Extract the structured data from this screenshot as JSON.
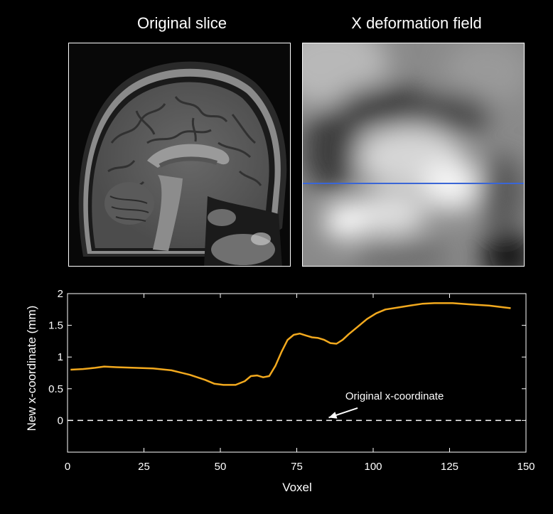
{
  "panels": {
    "left_title": "Original slice",
    "right_title": "X deformation field"
  },
  "colors": {
    "curve": "#f2a91e",
    "baseline": "#ffffff",
    "profile_line": "#3a66d6",
    "axis": "#ffffff",
    "background": "#000000"
  },
  "chart_data": {
    "type": "line",
    "title": "",
    "xlabel": "Voxel",
    "ylabel": "New x-coordinate (mm)",
    "xlim": [
      0,
      150
    ],
    "ylim": [
      -0.5,
      2
    ],
    "xticks": [
      0,
      25,
      50,
      75,
      100,
      125,
      150
    ],
    "yticks": [
      0,
      0.5,
      1,
      1.5,
      2
    ],
    "xtick_labels": [
      "0",
      "25",
      "50",
      "75",
      "100",
      "125",
      "150"
    ],
    "ytick_labels": [
      "0",
      "0.5",
      "1",
      "1.5",
      "2"
    ],
    "grid": false,
    "series": [
      {
        "x": [
          1,
          5,
          9,
          12,
          16,
          22,
          28,
          34,
          40,
          45,
          48,
          51,
          55,
          58,
          60,
          62,
          64,
          66,
          68,
          70,
          72,
          74,
          76,
          78,
          80,
          82,
          84,
          86,
          88,
          90,
          92,
          95,
          98,
          101,
          104,
          108,
          112,
          116,
          120,
          126,
          132,
          138,
          145
        ],
        "y": [
          0.8,
          0.81,
          0.83,
          0.85,
          0.84,
          0.83,
          0.82,
          0.79,
          0.72,
          0.64,
          0.58,
          0.56,
          0.56,
          0.62,
          0.7,
          0.71,
          0.68,
          0.7,
          0.86,
          1.08,
          1.27,
          1.35,
          1.37,
          1.34,
          1.31,
          1.3,
          1.27,
          1.22,
          1.21,
          1.27,
          1.36,
          1.48,
          1.6,
          1.69,
          1.75,
          1.78,
          1.81,
          1.84,
          1.85,
          1.85,
          1.83,
          1.81,
          1.77
        ]
      },
      {
        "x": [
          0,
          150
        ],
        "y": [
          0,
          0
        ],
        "style": "dashed"
      }
    ],
    "annotations": [
      {
        "text": "Original x-coordinate",
        "x": 107,
        "y": 0.33,
        "arrow_to": [
          85,
          0
        ]
      }
    ]
  }
}
